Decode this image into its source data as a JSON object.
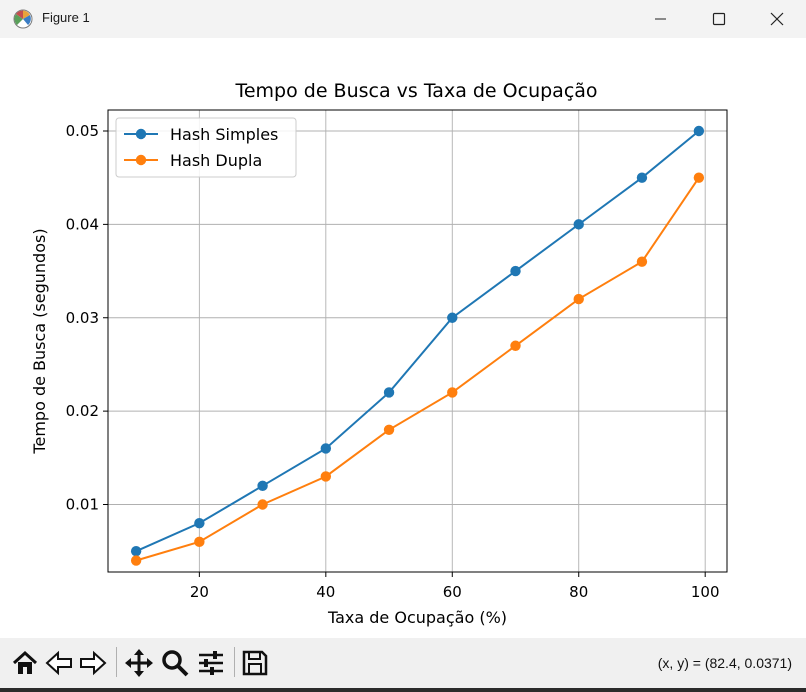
{
  "window": {
    "title": "Figure 1"
  },
  "chart_data": {
    "type": "line",
    "title": "Tempo de Busca vs Taxa de Ocupação",
    "xlabel": "Taxa de Ocupação (%)",
    "ylabel": "Tempo de Busca (segundos)",
    "x": [
      10,
      20,
      30,
      40,
      50,
      60,
      70,
      80,
      90,
      99
    ],
    "series": [
      {
        "name": "Hash Simples",
        "color": "#1f77b4",
        "values": [
          0.005,
          0.008,
          0.012,
          0.016,
          0.022,
          0.03,
          0.035,
          0.04,
          0.045,
          0.05
        ]
      },
      {
        "name": "Hash Dupla",
        "color": "#ff7f0e",
        "values": [
          0.004,
          0.006,
          0.01,
          0.013,
          0.018,
          0.022,
          0.027,
          0.032,
          0.036,
          0.045
        ]
      }
    ],
    "xlim": [
      5.55,
      103.45
    ],
    "ylim": [
      0.00277,
      0.05225
    ],
    "xticks": [
      20,
      40,
      60,
      80,
      100
    ],
    "xtick_labels": [
      "20",
      "40",
      "60",
      "80",
      "100"
    ],
    "yticks": [
      0.01,
      0.02,
      0.03,
      0.04,
      0.05
    ],
    "ytick_labels": [
      "0.01",
      "0.02",
      "0.03",
      "0.04",
      "0.05"
    ],
    "grid": true,
    "legend_position": "top-left",
    "marker": "circle"
  },
  "toolbar": {
    "icons": [
      "home-icon",
      "back-icon",
      "forward-icon",
      "pan-icon",
      "zoom-icon",
      "configure-subplots-icon",
      "save-icon"
    ],
    "coords_text": "(x, y) = (82.4, 0.0371)"
  }
}
